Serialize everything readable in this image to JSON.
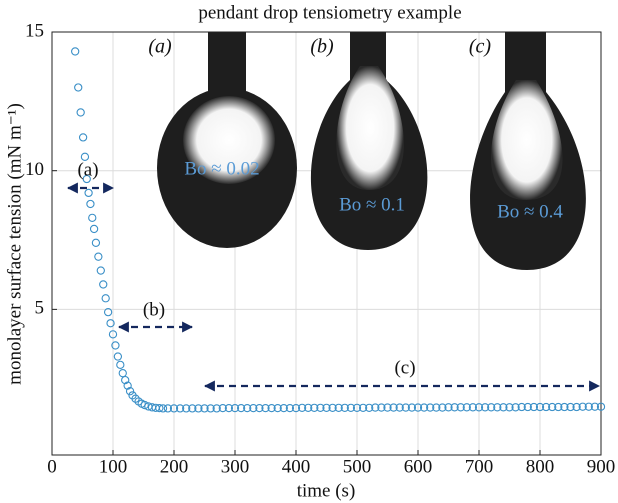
{
  "chart_data": {
    "type": "scatter",
    "title": "pendant drop tensiometry example",
    "xlabel": "time (s)",
    "ylabel": "monolayer surface tension (mN m⁻¹)",
    "xlim": [
      0,
      900
    ],
    "ylim": [
      -0.25,
      15
    ],
    "xticks": [
      0,
      100,
      200,
      300,
      400,
      500,
      600,
      700,
      800,
      900
    ],
    "yticks": [
      5,
      10,
      15
    ],
    "grid": true,
    "color": "#3a8fc7",
    "x": [
      38,
      43,
      47,
      51,
      54,
      57,
      60,
      63,
      66,
      69,
      72,
      76,
      80,
      84,
      88,
      92,
      96,
      100,
      104,
      108,
      112,
      116,
      120,
      124,
      128,
      132,
      137,
      142,
      147,
      152,
      158,
      164,
      170,
      176,
      182,
      190,
      200,
      210,
      220,
      230,
      240,
      250,
      260,
      270,
      280,
      290,
      300,
      310,
      320,
      330,
      340,
      350,
      360,
      370,
      380,
      390,
      400,
      410,
      420,
      430,
      440,
      450,
      460,
      470,
      480,
      490,
      500,
      510,
      520,
      530,
      540,
      550,
      560,
      570,
      580,
      590,
      600,
      610,
      620,
      630,
      640,
      650,
      660,
      670,
      680,
      690,
      700,
      710,
      720,
      730,
      740,
      750,
      760,
      770,
      780,
      790,
      800,
      810,
      820,
      830,
      840,
      850,
      860,
      870,
      880,
      890,
      900
    ],
    "values": [
      14.3,
      13.0,
      12.1,
      11.2,
      10.5,
      9.7,
      9.2,
      8.8,
      8.3,
      7.9,
      7.4,
      6.9,
      6.4,
      5.9,
      5.4,
      4.9,
      4.5,
      4.1,
      3.7,
      3.3,
      3.0,
      2.7,
      2.45,
      2.25,
      2.05,
      1.9,
      1.78,
      1.68,
      1.6,
      1.55,
      1.5,
      1.47,
      1.45,
      1.44,
      1.43,
      1.43,
      1.43,
      1.43,
      1.43,
      1.43,
      1.43,
      1.43,
      1.43,
      1.43,
      1.44,
      1.44,
      1.44,
      1.44,
      1.44,
      1.44,
      1.44,
      1.44,
      1.44,
      1.44,
      1.44,
      1.44,
      1.44,
      1.45,
      1.45,
      1.45,
      1.45,
      1.45,
      1.45,
      1.45,
      1.45,
      1.45,
      1.45,
      1.45,
      1.45,
      1.46,
      1.46,
      1.46,
      1.46,
      1.46,
      1.46,
      1.46,
      1.46,
      1.46,
      1.46,
      1.46,
      1.46,
      1.47,
      1.47,
      1.47,
      1.47,
      1.47,
      1.47,
      1.47,
      1.47,
      1.47,
      1.47,
      1.47,
      1.47,
      1.48,
      1.48,
      1.48,
      1.48,
      1.48,
      1.48,
      1.48,
      1.48,
      1.48,
      1.48,
      1.49,
      1.49,
      1.49,
      1.49
    ],
    "annotations": [
      "(a)",
      "(b)",
      "(c)"
    ],
    "insets": [
      {
        "label": "(a)",
        "text": "Bo ≈ 0.02"
      },
      {
        "label": "(b)",
        "text": "Bo ≈ 0.1"
      },
      {
        "label": "(c)",
        "text": "Bo ≈ 0.4"
      }
    ]
  }
}
